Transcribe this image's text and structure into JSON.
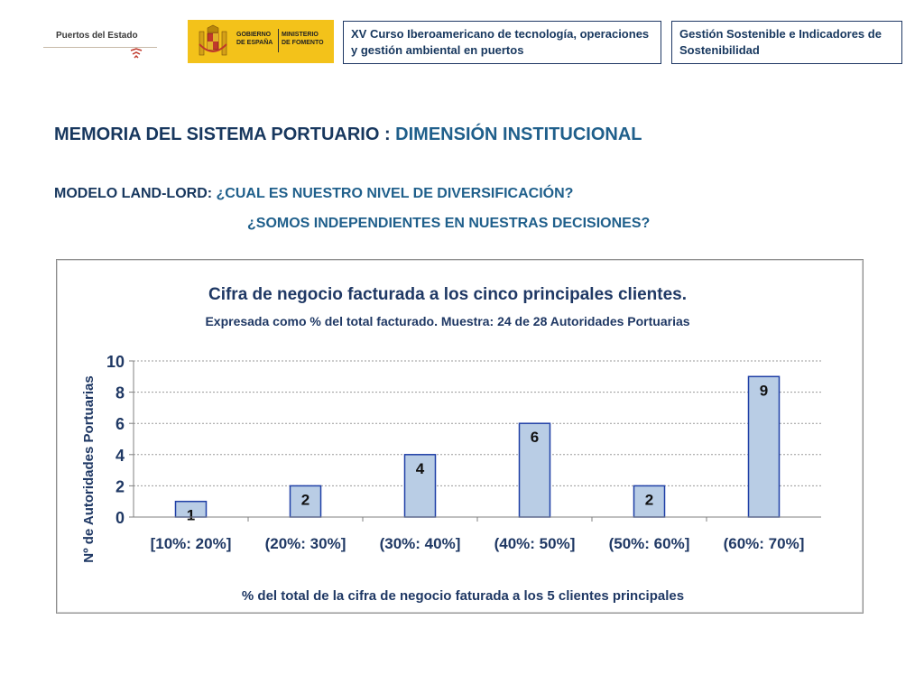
{
  "header": {
    "logo_puertos": "Puertos del Estado",
    "logo_gov_left": "GOBIERNO\nDE ESPAÑA",
    "logo_gov_right": "MINISTERIO\nDE FOMENTO",
    "box1": "XV Curso Iberoamericano de tecnología, operaciones y gestión ambiental en puertos",
    "box2": "Gestión Sostenible e Indicadores de Sostenibilidad"
  },
  "headings": {
    "title_part1": "MEMORIA DEL SISTEMA PORTUARIO : ",
    "title_part2": "DIMENSIÓN INSTITUCIONAL",
    "sub_part1": "MODELO LAND-LORD: ",
    "sub_part2": "¿CUAL ES NUESTRO NIVEL DE DIVERSIFICACIÓN?",
    "sub_line2": "¿SOMOS INDEPENDIENTES EN NUESTRAS DECISIONES?"
  },
  "colors": {
    "bar_fill": "#b9cde5",
    "bar_stroke": "#1f3fa6",
    "title_navy": "#17375e",
    "title_blue": "#1f5f8b",
    "axis_text": "#1f3864"
  },
  "chart_data": {
    "type": "bar",
    "title": "Cifra de negocio facturada a los cinco principales clientes.",
    "subtitle": "Expresada como % del total facturado. Muestra: 24 de 28 Autoridades Portuarias",
    "categories": [
      "[10%: 20%]",
      "(20%: 30%]",
      "(30%: 40%]",
      "(40%: 50%]",
      "(50%: 60%]",
      "(60%: 70%]"
    ],
    "values": [
      1,
      2,
      4,
      6,
      2,
      9
    ],
    "data_labels": [
      "1",
      "2",
      "4",
      "6",
      "2",
      "9"
    ],
    "xlabel": "% del total de la cifra de negocio faturada a los 5 clientes principales",
    "ylabel": "Nº de Autoridades Portuarias",
    "ylim": [
      0,
      10
    ],
    "yticks": [
      "0",
      "2",
      "4",
      "6",
      "8",
      "10"
    ],
    "grid": true,
    "legend": "none"
  }
}
